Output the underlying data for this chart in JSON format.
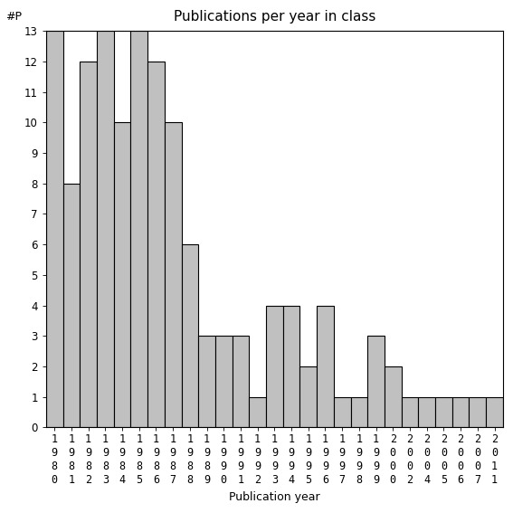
{
  "title": "Publications per year in class",
  "xlabel": "Publication year",
  "ylabel": "#P",
  "years": [
    1980,
    1981,
    1982,
    1983,
    1984,
    1985,
    1986,
    1987,
    1988,
    1989,
    1990,
    1991,
    1992,
    1993,
    1994,
    1995,
    1996,
    1997,
    1998,
    1999,
    2000,
    2002,
    2004,
    2005,
    2006,
    2007,
    2011
  ],
  "values": [
    13,
    8,
    12,
    13,
    10,
    13,
    12,
    10,
    6,
    3,
    3,
    3,
    1,
    4,
    4,
    2,
    4,
    1,
    1,
    3,
    2,
    1,
    1,
    1,
    1,
    1,
    1
  ],
  "bar_color": "#c0c0c0",
  "bar_edge_color": "#000000",
  "ylim": [
    0,
    13
  ],
  "yticks": [
    0,
    1,
    2,
    3,
    4,
    5,
    6,
    7,
    8,
    9,
    10,
    11,
    12,
    13
  ],
  "background_color": "#ffffff",
  "title_fontsize": 11,
  "axis_fontsize": 9,
  "tick_fontsize": 8.5
}
